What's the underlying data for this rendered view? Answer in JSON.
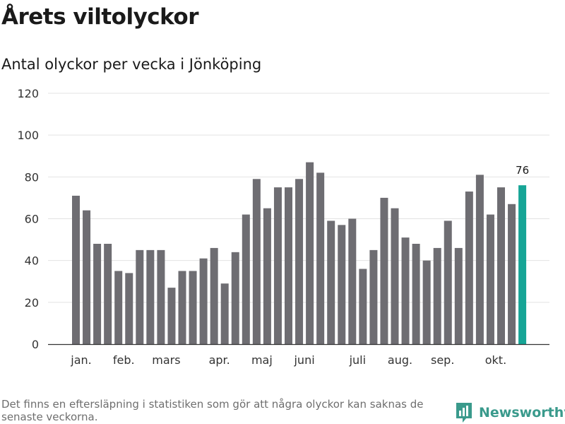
{
  "chart_data": {
    "type": "bar",
    "title": "Årets viltolyckor",
    "subtitle": "Antal olyckor per vecka i Jönköping",
    "ylim": [
      0,
      120
    ],
    "yticks": [
      0,
      20,
      40,
      60,
      80,
      100,
      120
    ],
    "grid": true,
    "values": [
      71,
      64,
      48,
      48,
      35,
      34,
      45,
      45,
      45,
      27,
      35,
      35,
      41,
      46,
      29,
      44,
      62,
      79,
      65,
      75,
      75,
      79,
      87,
      82,
      59,
      57,
      60,
      36,
      45,
      70,
      65,
      51,
      48,
      40,
      46,
      59,
      46,
      73,
      81,
      62,
      75,
      67,
      76
    ],
    "month_labels": [
      {
        "label": "jan.",
        "index": 0.5
      },
      {
        "label": "feb.",
        "index": 4.5
      },
      {
        "label": "mars",
        "index": 8.5
      },
      {
        "label": "apr.",
        "index": 13.5
      },
      {
        "label": "maj",
        "index": 17.5
      },
      {
        "label": "juni",
        "index": 21.5
      },
      {
        "label": "juli",
        "index": 26.5
      },
      {
        "label": "aug.",
        "index": 30.5
      },
      {
        "label": "sep.",
        "index": 34.5
      },
      {
        "label": "okt.",
        "index": 39.5
      }
    ],
    "bar_color": "#6e6d72",
    "highlight_color": "#16a596",
    "highlight_index": 42,
    "highlight_label": "76"
  },
  "footnote": "Det finns en eftersläpning i statistiken som gör att några olyckor kan saknas de senaste veckorna.",
  "brand": {
    "name": "Newsworthy",
    "icon": "bar-chart-speech-icon",
    "color": "#3a9a8c"
  }
}
